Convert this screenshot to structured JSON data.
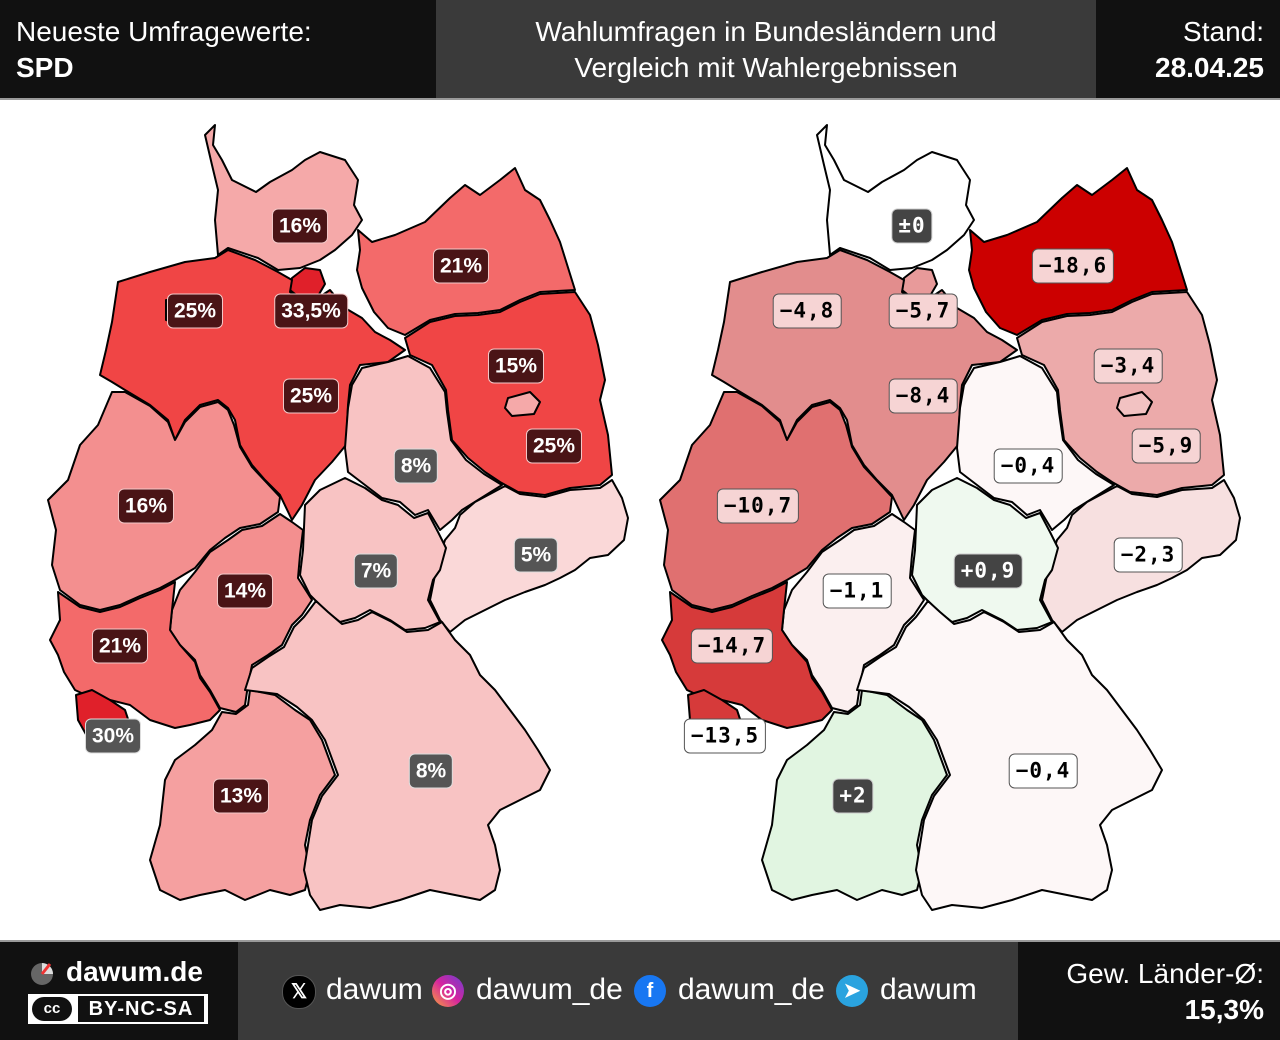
{
  "header": {
    "left_line1": "Neueste Umfragewerte:",
    "left_line2": "SPD",
    "title_line1": "Wahlumfragen in Bundesländern und",
    "title_line2": "Vergleich mit Wahlergebnissen",
    "right_line1": "Stand:",
    "right_line2": "28.04.25"
  },
  "left_map": {
    "regions": [
      {
        "id": "SH",
        "label": "16%",
        "color": "#f5a9a9"
      },
      {
        "id": "HH",
        "label": "33,5%",
        "color": "#e0202a"
      },
      {
        "id": "MV",
        "label": "21%",
        "color": "#f36a6a"
      },
      {
        "id": "NI",
        "label": "25%",
        "color": "#f04545"
      },
      {
        "id": "HB",
        "label": "25%",
        "color": "#f04545"
      },
      {
        "id": "BB",
        "label": "25%",
        "color": "#f04545"
      },
      {
        "id": "BE",
        "label": "15%",
        "color": "#f5a9a9"
      },
      {
        "id": "ST",
        "label": "8%",
        "color": "#f8c3c3"
      },
      {
        "id": "NW",
        "label": "16%",
        "color": "#f38f8f"
      },
      {
        "id": "SN",
        "label": "5%",
        "color": "#fad8d8"
      },
      {
        "id": "TH",
        "label": "7%",
        "color": "#f8c3c3"
      },
      {
        "id": "HE",
        "label": "14%",
        "color": "#f38f8f"
      },
      {
        "id": "RP",
        "label": "21%",
        "color": "#f36a6a"
      },
      {
        "id": "SL",
        "label": "30%",
        "color": "#e0202a"
      },
      {
        "id": "BW",
        "label": "13%",
        "color": "#f5a0a0"
      },
      {
        "id": "BY",
        "label": "8%",
        "color": "#f8c3c3"
      }
    ]
  },
  "right_map": {
    "regions": [
      {
        "id": "SH",
        "label": "±0",
        "color": "#ffffff"
      },
      {
        "id": "HH",
        "label": "−5,7",
        "color": "#e89a9a"
      },
      {
        "id": "MV",
        "label": "−18,6",
        "color": "#cc0000"
      },
      {
        "id": "NI",
        "label": "−8,4",
        "color": "#e28d8d"
      },
      {
        "id": "HB",
        "label": "−4,8",
        "color": "#f2cccc"
      },
      {
        "id": "BB",
        "label": "−5,9",
        "color": "#ecaaaa"
      },
      {
        "id": "BE",
        "label": "−3,4",
        "color": "#f2c2c2"
      },
      {
        "id": "ST",
        "label": "−0,4",
        "color": "#fdf7f7"
      },
      {
        "id": "NW",
        "label": "−10,7",
        "color": "#e07070"
      },
      {
        "id": "SN",
        "label": "−2,3",
        "color": "#f7e0e0"
      },
      {
        "id": "TH",
        "label": "+0,9",
        "color": "#eff9ef"
      },
      {
        "id": "HE",
        "label": "−1,1",
        "color": "#fbefef"
      },
      {
        "id": "RP",
        "label": "−14,7",
        "color": "#d63a3a"
      },
      {
        "id": "SL",
        "label": "−13,5",
        "color": "#d63a3a"
      },
      {
        "id": "BW",
        "label": "+2",
        "color": "#e1f5e1"
      },
      {
        "id": "BY",
        "label": "−0,4",
        "color": "#fdf7f7"
      }
    ]
  },
  "footer": {
    "site": "dawum.de",
    "license": "BY-NC-SA",
    "license_badge": "cc",
    "social": [
      {
        "icon": "x-icon",
        "glyph": "𝕏",
        "handle": "dawum",
        "color": "#000000"
      },
      {
        "icon": "instagram-icon",
        "glyph": "◎",
        "handle": "dawum_de",
        "color": "#d6249f"
      },
      {
        "icon": "facebook-icon",
        "glyph": "f",
        "handle": "dawum_de",
        "color": "#1877f2"
      },
      {
        "icon": "telegram-icon",
        "glyph": "➤",
        "handle": "dawum",
        "color": "#2aa3df"
      }
    ],
    "avg_label": "Gew. Länder-Ø:",
    "avg_value": "15,3%"
  }
}
